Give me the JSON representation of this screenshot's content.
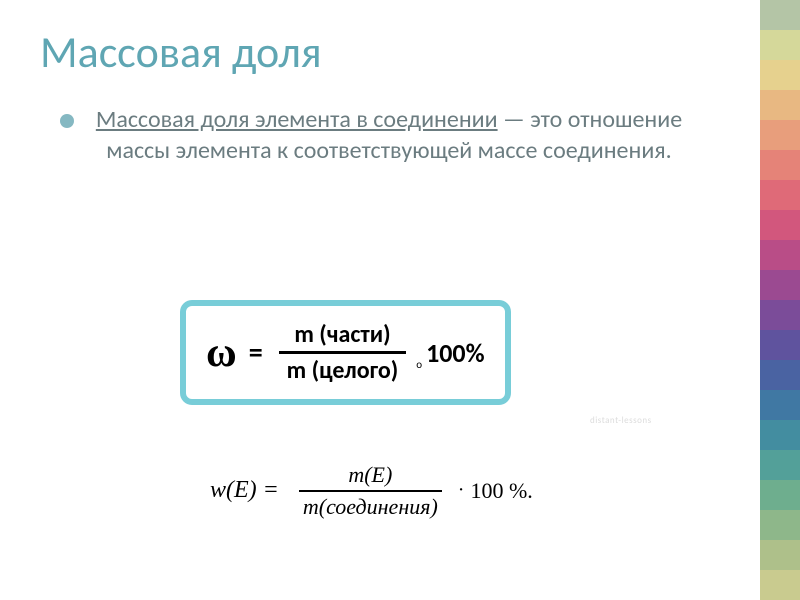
{
  "slide": {
    "title": "Массовая доля",
    "title_color": "#5fa6b3",
    "bullet_color": "#85b8c2",
    "definition_underlined": "Массовая доля элемента в соединении",
    "definition_rest": " — это отношение массы элемента к соответствующей массе соединения.",
    "body_color": "#6b7c80"
  },
  "formula1": {
    "border_color": "#78cdd8",
    "omega": "ω",
    "equals": "=",
    "numerator": "m (части)",
    "denominator": "m (целого)",
    "dot": "о",
    "percent": "100%"
  },
  "formula2": {
    "left": "w(E) =",
    "numerator": "m(E)",
    "denominator": "m(соединения)",
    "dot": "·",
    "right": "100 %."
  },
  "watermark": "distant-lessons",
  "deco_colors": [
    "#b4c5a6",
    "#d5d89a",
    "#e6d18e",
    "#e8b882",
    "#e89e7c",
    "#e58378",
    "#df6a78",
    "#d2577d",
    "#b94d87",
    "#9b4a91",
    "#7b4c99",
    "#5f539e",
    "#4a63a2",
    "#4078a3",
    "#438da0",
    "#53a099",
    "#6eae8e",
    "#8eb78a",
    "#aec08a",
    "#c9cb8f"
  ]
}
